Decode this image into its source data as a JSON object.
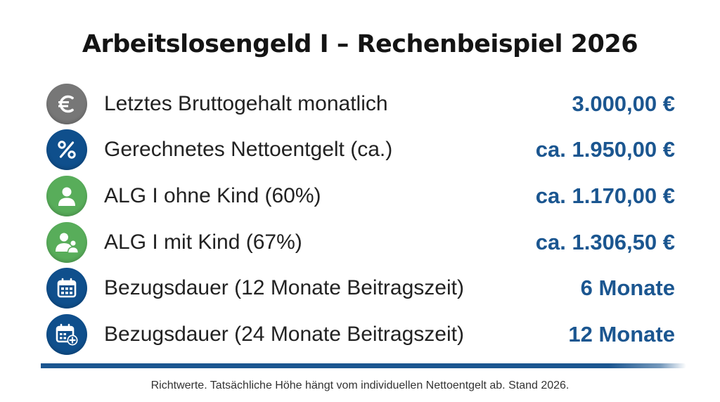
{
  "title": "Arbeitslosengeld I – Rechenbeispiel 2026",
  "rows": [
    {
      "icon": "euro-icon",
      "icon_color": "#777777",
      "label": "Letztes Bruttogehalt monatlich",
      "value": "3.000,00 €"
    },
    {
      "icon": "percent-icon",
      "icon_color": "#0f4f8c",
      "label": "Gerechnetes Nettoentgelt (ca.)",
      "value": "ca. 1.950,00 €"
    },
    {
      "icon": "person-icon",
      "icon_color": "#58ad5a",
      "label": "ALG I ohne Kind (60%)",
      "value": "ca. 1.170,00 €"
    },
    {
      "icon": "parent-child-icon",
      "icon_color": "#58ad5a",
      "label": "ALG I mit Kind (67%)",
      "value": "ca. 1.306,50 €"
    },
    {
      "icon": "calendar-icon",
      "icon_color": "#0f4f8c",
      "label": "Bezugsdauer (12 Monate Beitragszeit)",
      "value": "6 Monate"
    },
    {
      "icon": "calendar-plus-icon",
      "icon_color": "#0f4f8c",
      "label": "Bezugsdauer (24 Monate Beitragszeit)",
      "value": "12 Monate"
    }
  ],
  "accent_color": "#1b5690",
  "footnote": "Richtwerte. Tatsächliche Höhe hängt vom individuellen Nettoentgelt ab. Stand 2026."
}
